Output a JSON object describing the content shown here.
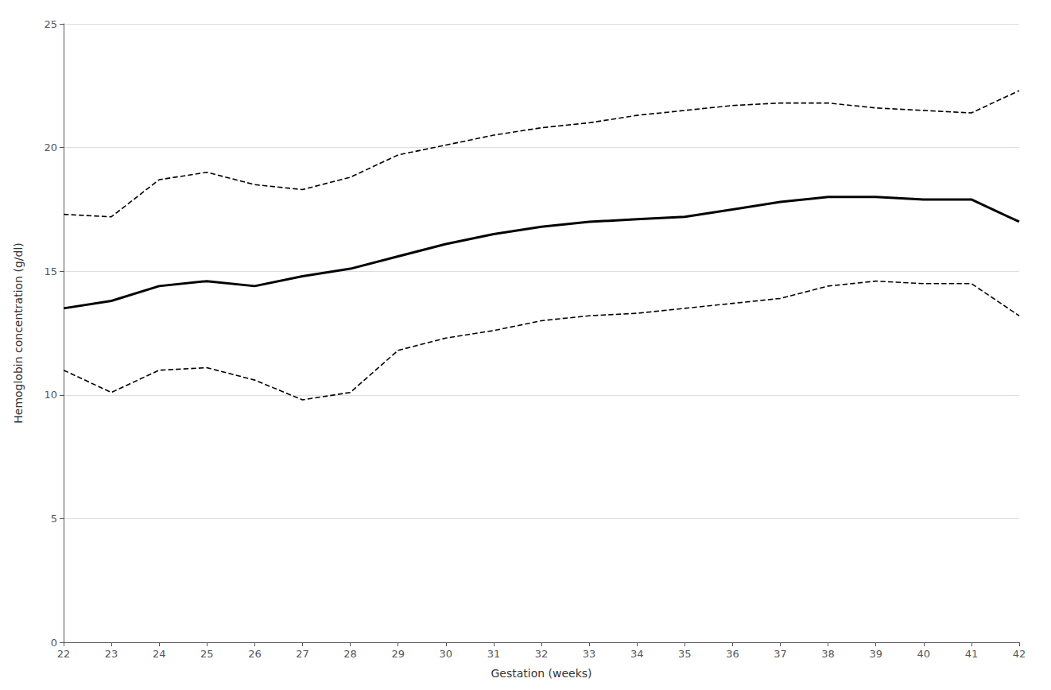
{
  "chart_data": {
    "type": "line",
    "x": [
      22,
      23,
      24,
      25,
      26,
      27,
      28,
      29,
      30,
      31,
      32,
      33,
      34,
      35,
      36,
      37,
      38,
      39,
      40,
      41,
      42
    ],
    "series": [
      {
        "color": "#000000",
        "line_style": "dashed",
        "values": [
          17.3,
          17.2,
          18.7,
          19.0,
          18.5,
          18.3,
          18.8,
          19.7,
          20.1,
          20.5,
          20.8,
          21.0,
          21.3,
          21.5,
          21.7,
          21.8,
          21.8,
          21.6,
          21.5,
          21.4,
          22.3
        ]
      },
      {
        "color": "#000000",
        "line_style": "dashed",
        "values": [
          11.0,
          10.1,
          11.0,
          11.1,
          10.6,
          9.8,
          10.1,
          11.8,
          12.3,
          12.6,
          13.0,
          13.2,
          13.3,
          13.5,
          13.7,
          13.9,
          14.4,
          14.6,
          14.5,
          14.5,
          13.2
        ]
      },
      {
        "color": "#000000",
        "line_style": "solid",
        "values": [
          13.5,
          13.8,
          14.4,
          14.6,
          14.4,
          14.8,
          15.1,
          15.6,
          16.1,
          16.5,
          16.8,
          17.0,
          17.1,
          17.2,
          17.5,
          17.8,
          18.0,
          18.0,
          17.9,
          17.9,
          17.0
        ]
      }
    ],
    "xlabel": "Gestation (weeks)",
    "ylabel": "Hemoglobin concentration (g/dl)",
    "xlim": [
      22,
      42
    ],
    "ylim": [
      0,
      25
    ],
    "xticks": [
      22,
      23,
      24,
      25,
      26,
      27,
      28,
      29,
      30,
      31,
      32,
      33,
      34,
      35,
      36,
      37,
      38,
      39,
      40,
      41,
      42
    ],
    "yticks": [
      0,
      5,
      10,
      15,
      20,
      25
    ],
    "grid": "y"
  }
}
